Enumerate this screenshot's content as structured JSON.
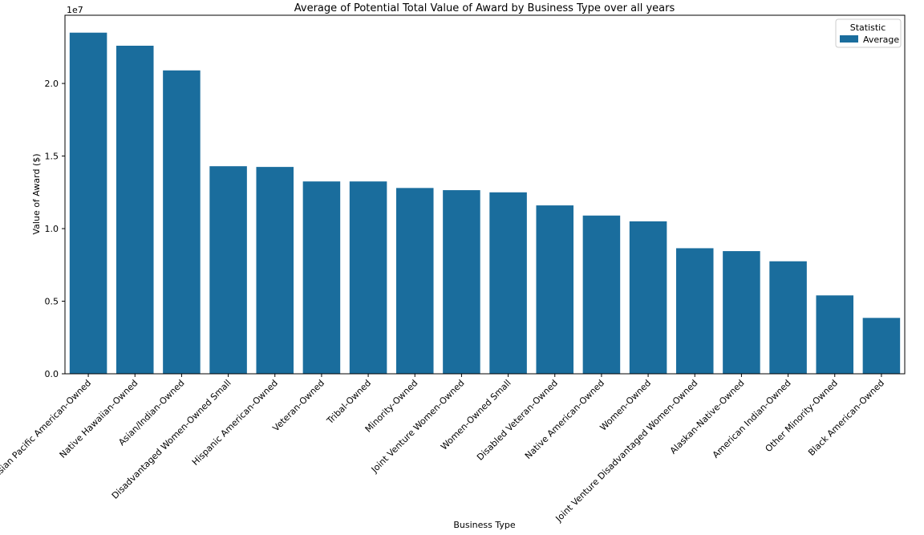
{
  "chart_data": {
    "type": "bar",
    "title": "Average of Potential Total Value of Award by Business Type over all years",
    "xlabel": "Business Type",
    "ylabel": "Value of Award ($)",
    "y_multiplier_label": "1e7",
    "ylim": [
      0,
      24700000
    ],
    "y_ticks": [
      0,
      5000000,
      10000000,
      15000000,
      20000000
    ],
    "y_tick_labels": [
      "0.0",
      "0.5",
      "1.0",
      "1.5",
      "2.0"
    ],
    "grid": false,
    "bar_color": "#1a6d9d",
    "legend": {
      "title": "Statistic",
      "placement": "top-right",
      "entries": [
        {
          "name": "Average",
          "color": "#1a6d9d"
        }
      ]
    },
    "categories": [
      "Asian Pacific American-Owned",
      "Native Hawaiian-Owned",
      "Asian/Indian-Owned",
      "Disadvantaged Women-Owned Small",
      "Hispanic American-Owned",
      "Veteran-Owned",
      "Tribal-Owned",
      "Minority-Owned",
      "Joint Venture Women-Owned",
      "Women-Owned Small",
      "Disabled Veteran-Owned",
      "Native American-Owned",
      "Women-Owned",
      "Joint Venture Disadvantaged Women-Owned",
      "Alaskan-Native-Owned",
      "American Indian-Owned",
      "Other Minority-Owned",
      "Black American-Owned"
    ],
    "series": [
      {
        "name": "Average",
        "values": [
          23500000,
          22600000,
          20900000,
          14300000,
          14250000,
          13250000,
          13250000,
          12800000,
          12650000,
          12500000,
          11600000,
          10900000,
          10500000,
          8650000,
          8450000,
          7750000,
          5400000,
          3850000
        ]
      }
    ]
  }
}
